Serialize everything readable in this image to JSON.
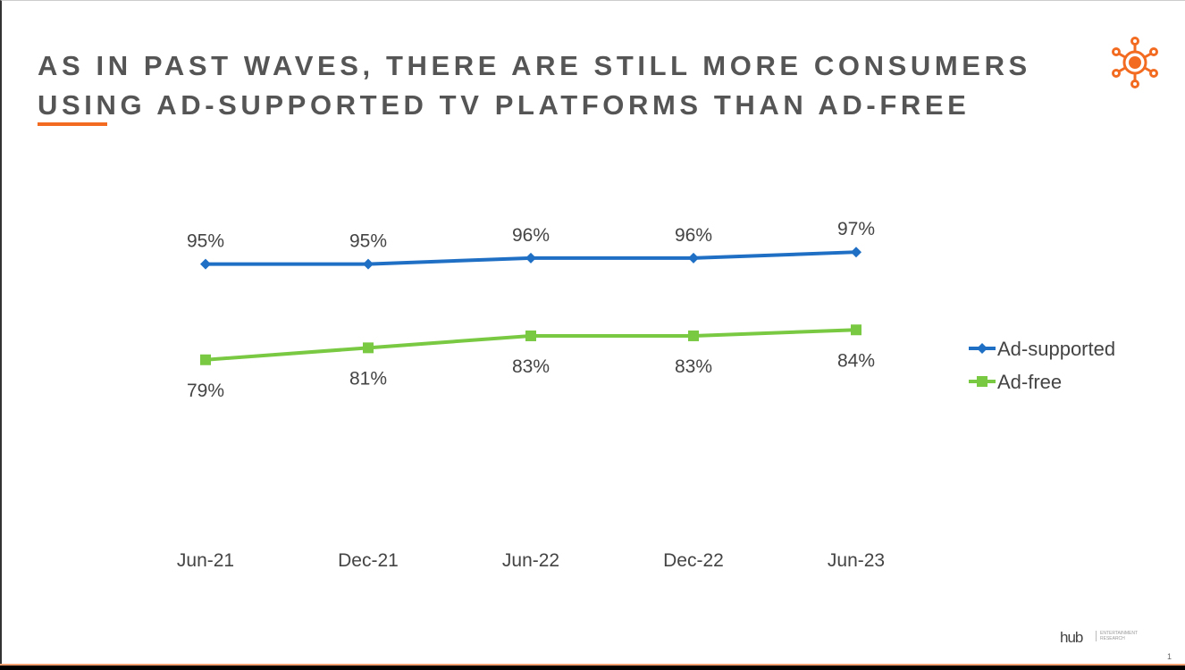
{
  "slide": {
    "title_line1": "As in past waves, there are still more consumers",
    "title_line2": "using ad-supported TV platforms than ad-free",
    "logo_icon": "orange-sun-network-icon",
    "footer_brand": "hub",
    "footer_brand_sub": "ENTERTAINMENT RESEARCH",
    "page_number": "1",
    "accent_color": "#f26b21"
  },
  "chart_data": {
    "type": "line",
    "categories": [
      "Jun-21",
      "Dec-21",
      "Jun-22",
      "Dec-22",
      "Jun-23"
    ],
    "series": [
      {
        "name": "Ad-supported",
        "values": [
          95,
          95,
          96,
          96,
          97
        ],
        "labels": [
          "95%",
          "95%",
          "96%",
          "96%",
          "97%"
        ],
        "color": "#1f6fc5",
        "marker": "diamond",
        "label_position": "above"
      },
      {
        "name": "Ad-free",
        "values": [
          79,
          81,
          83,
          83,
          84
        ],
        "labels": [
          "79%",
          "81%",
          "83%",
          "83%",
          "84%"
        ],
        "color": "#7ac943",
        "marker": "square",
        "label_position": "below"
      }
    ],
    "ylim": [
      50,
      103
    ],
    "grid": false,
    "y_axis_visible": false,
    "legend_position": "right"
  }
}
